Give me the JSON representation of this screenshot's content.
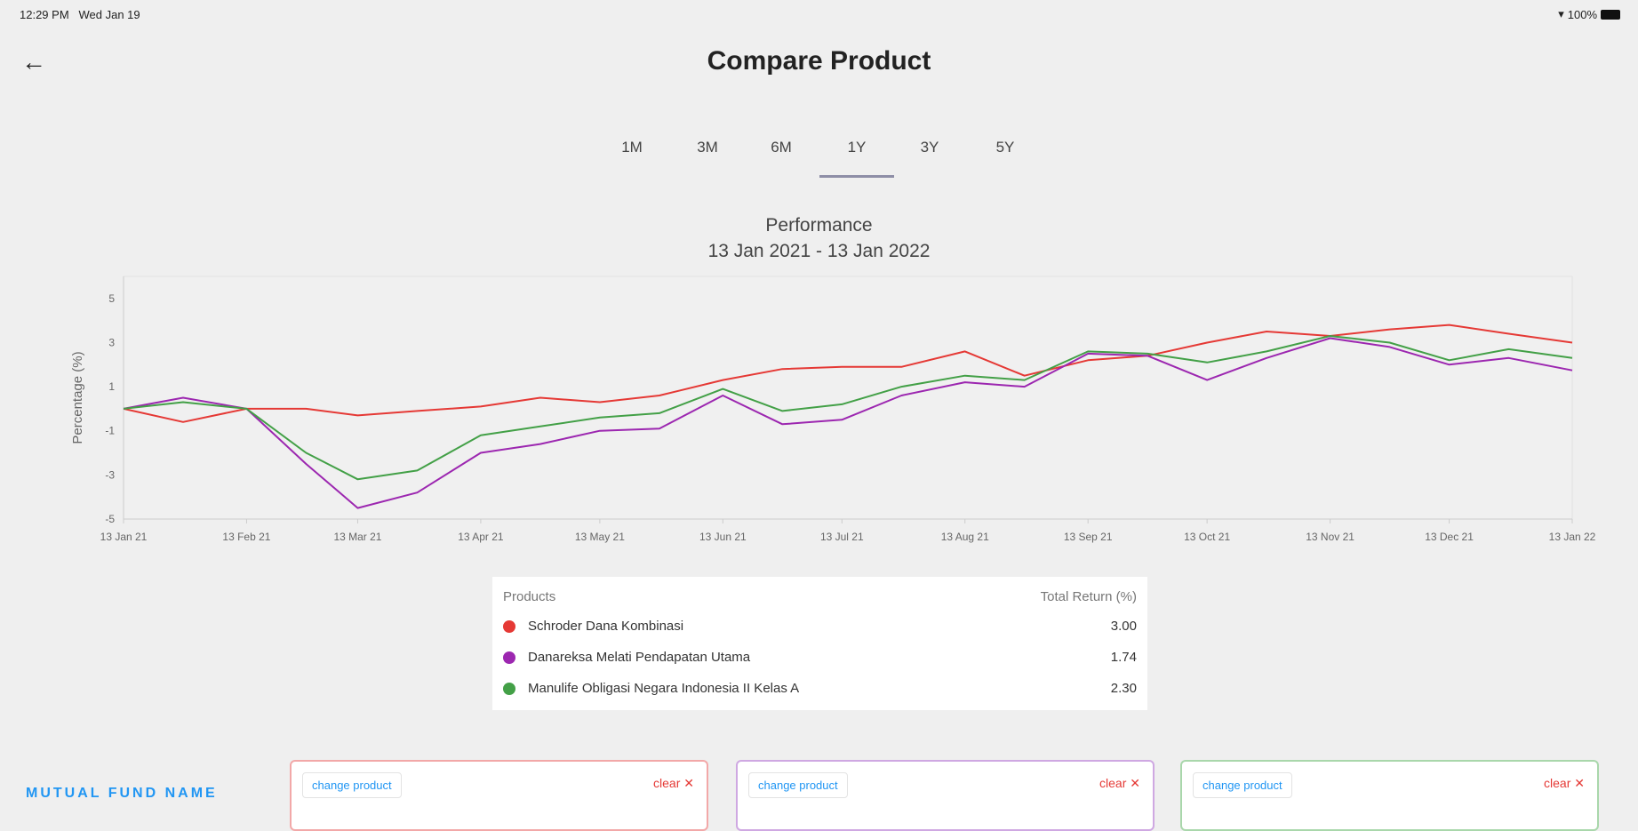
{
  "status_bar": {
    "time": "12:29 PM",
    "date": "Wed Jan 19",
    "battery": "100%",
    "wifi_icon": "wifi-icon",
    "battery_icon": "battery-icon"
  },
  "header": {
    "title": "Compare Product",
    "back_icon": "arrow-left-icon"
  },
  "tabs": [
    {
      "label": "1M"
    },
    {
      "label": "3M"
    },
    {
      "label": "6M"
    },
    {
      "label": "1Y",
      "active": true
    },
    {
      "label": "3Y"
    },
    {
      "label": "5Y"
    }
  ],
  "chart_data": {
    "type": "line",
    "title": "Performance",
    "subtitle": "13 Jan 2021 - 13 Jan 2022",
    "ylabel": "Percentage (%)",
    "xlabel": "",
    "ylim": [
      -5,
      6
    ],
    "yticks": [
      -5,
      -3,
      -1,
      1,
      3,
      5
    ],
    "xticks": [
      "13 Jan 21",
      "13 Feb 21",
      "13 Mar 21",
      "13 Apr 21",
      "13 May 21",
      "13 Jun 21",
      "13 Jul 21",
      "13 Aug 21",
      "13 Sep 21",
      "13 Oct 21",
      "13 Nov 21",
      "13 Dec 21",
      "13 Jan 22"
    ],
    "grid": false,
    "x": [
      "2021-01-13",
      "2021-01-28",
      "2021-02-13",
      "2021-02-28",
      "2021-03-13",
      "2021-03-28",
      "2021-04-13",
      "2021-04-28",
      "2021-05-13",
      "2021-05-28",
      "2021-06-13",
      "2021-06-28",
      "2021-07-13",
      "2021-07-28",
      "2021-08-13",
      "2021-08-28",
      "2021-09-13",
      "2021-09-28",
      "2021-10-13",
      "2021-10-28",
      "2021-11-13",
      "2021-11-28",
      "2021-12-13",
      "2021-12-28",
      "2022-01-13"
    ],
    "series": [
      {
        "name": "Schroder Dana Kombinasi",
        "color": "#e53935",
        "values": [
          0,
          -0.6,
          0,
          0,
          -0.3,
          -0.1,
          0.1,
          0.5,
          0.3,
          0.6,
          1.3,
          1.8,
          1.9,
          1.9,
          2.6,
          1.5,
          2.2,
          2.4,
          3.0,
          3.5,
          3.3,
          3.6,
          3.8,
          3.4,
          3.0
        ]
      },
      {
        "name": "Danareksa Melati Pendapatan Utama",
        "color": "#9c27b0",
        "values": [
          0,
          0.5,
          0,
          -2.5,
          -4.5,
          -3.8,
          -2.0,
          -1.6,
          -1.0,
          -0.9,
          0.6,
          -0.7,
          -0.5,
          0.6,
          1.2,
          1.0,
          2.5,
          2.4,
          1.3,
          2.3,
          3.2,
          2.8,
          2.0,
          2.3,
          1.74
        ]
      },
      {
        "name": "Manulife Obligasi Negara Indonesia II Kelas A",
        "color": "#43a047",
        "values": [
          0,
          0.3,
          0,
          -2.0,
          -3.2,
          -2.8,
          -1.2,
          -0.8,
          -0.4,
          -0.2,
          0.9,
          -0.1,
          0.2,
          1.0,
          1.5,
          1.3,
          2.6,
          2.5,
          2.1,
          2.6,
          3.3,
          3.0,
          2.2,
          2.7,
          2.3
        ]
      }
    ]
  },
  "legend": {
    "header_products": "Products",
    "header_return": "Total Return (%)",
    "rows": [
      {
        "name": "Schroder Dana Kombinasi",
        "value": "3.00",
        "color": "#e53935"
      },
      {
        "name": "Danareksa Melati Pendapatan Utama",
        "value": "1.74",
        "color": "#9c27b0"
      },
      {
        "name": "Manulife Obligasi Negara Indonesia II Kelas A",
        "value": "2.30",
        "color": "#43a047"
      }
    ]
  },
  "compare": {
    "section_label": "MUTUAL FUND NAME",
    "cards": [
      {
        "change_label": "change product",
        "clear_label": "clear ✕",
        "border": "#f2a8a8"
      },
      {
        "change_label": "change product",
        "clear_label": "clear ✕",
        "border": "#cfa8e2"
      },
      {
        "change_label": "change product",
        "clear_label": "clear ✕",
        "border": "#a9d7ab"
      }
    ]
  }
}
